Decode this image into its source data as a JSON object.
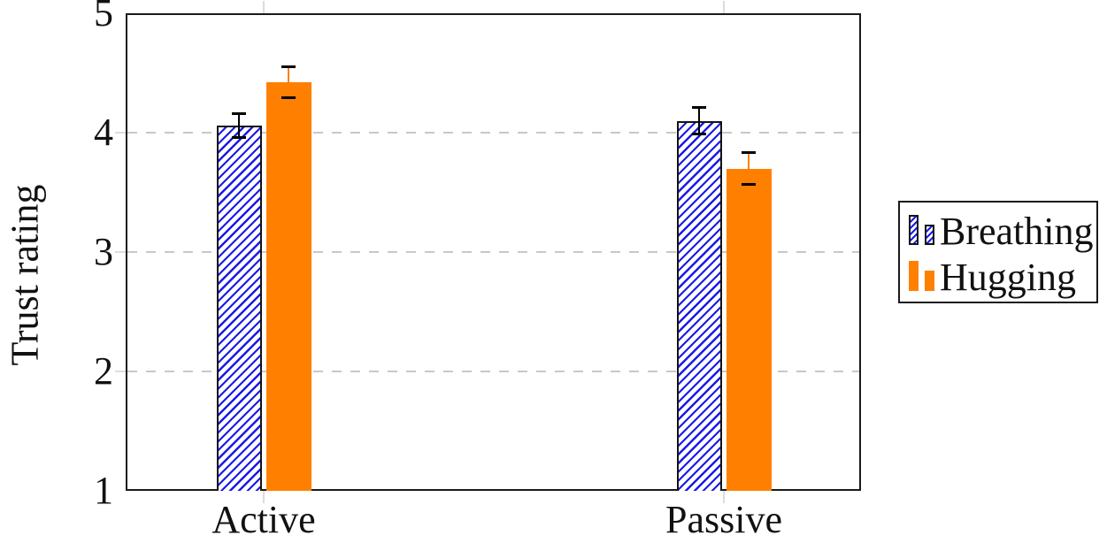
{
  "chart_data": {
    "type": "bar",
    "title": "",
    "categories": [
      "Active",
      "Passive"
    ],
    "series": [
      {
        "name": "Breathing",
        "values": [
          4.06,
          4.1
        ],
        "errors": [
          0.1,
          0.11
        ],
        "fill": "hatched",
        "hatch_color": "#1a1ae8",
        "edge_color": "#141414",
        "error_line_color": "#000000",
        "error_cap_color": "#000000"
      },
      {
        "name": "Hugging",
        "values": [
          4.42,
          3.7
        ],
        "errors": [
          0.13,
          0.13
        ],
        "fill": "solid",
        "fill_color": "#ff8000",
        "error_line_color": "#ff8000",
        "error_cap_color": "#000000"
      }
    ],
    "xlabel": "",
    "ylabel": "Trust rating",
    "ylim": [
      1,
      5
    ],
    "yticks": [
      5,
      4,
      3,
      2,
      1
    ],
    "gridlines_at": [
      2,
      3,
      4
    ],
    "grid_style": "dashed",
    "legend": {
      "position": "outside-right",
      "items": [
        "Breathing",
        "Hugging"
      ]
    }
  },
  "colors": {
    "orange": "#ff8000",
    "hatch_blue": "#1a1ae8",
    "bar_edge": "#141414",
    "frame": "#1a1a1a",
    "gridline": "#c8c8c8",
    "outer_tick": "#dcdcdc",
    "text": "#111111",
    "background": "#ffffff"
  }
}
